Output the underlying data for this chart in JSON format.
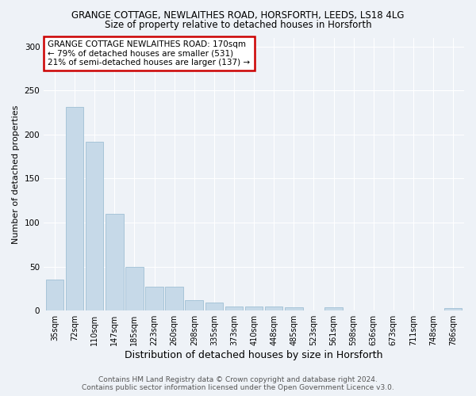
{
  "title": "GRANGE COTTAGE, NEWLAITHES ROAD, HORSFORTH, LEEDS, LS18 4LG",
  "subtitle": "Size of property relative to detached houses in Horsforth",
  "xlabel": "Distribution of detached houses by size in Horsforth",
  "ylabel": "Number of detached properties",
  "categories": [
    "35sqm",
    "72sqm",
    "110sqm",
    "147sqm",
    "185sqm",
    "223sqm",
    "260sqm",
    "298sqm",
    "335sqm",
    "373sqm",
    "410sqm",
    "448sqm",
    "485sqm",
    "523sqm",
    "561sqm",
    "598sqm",
    "636sqm",
    "673sqm",
    "711sqm",
    "748sqm",
    "786sqm"
  ],
  "values": [
    35,
    231,
    192,
    110,
    50,
    27,
    27,
    12,
    9,
    5,
    5,
    5,
    4,
    0,
    4,
    0,
    0,
    0,
    0,
    0,
    3
  ],
  "bar_color": "#c6d9e8",
  "bar_edge_color": "#9fbfd4",
  "ylim": [
    0,
    310
  ],
  "yticks": [
    0,
    50,
    100,
    150,
    200,
    250,
    300
  ],
  "annotation_line1": "GRANGE COTTAGE NEWLAITHES ROAD: 170sqm",
  "annotation_line2": "← 79% of detached houses are smaller (531)",
  "annotation_line3": "21% of semi-detached houses are larger (137) →",
  "annotation_box_color": "#ffffff",
  "annotation_box_edge": "#cc0000",
  "background_color": "#eef2f7",
  "grid_color": "#ffffff",
  "footer_line1": "Contains HM Land Registry data © Crown copyright and database right 2024.",
  "footer_line2": "Contains public sector information licensed under the Open Government Licence v3.0.",
  "title_fontsize": 8.5,
  "subtitle_fontsize": 8.5,
  "annotation_fontsize": 7.5,
  "ylabel_fontsize": 8,
  "xlabel_fontsize": 9,
  "footer_fontsize": 6.5,
  "tick_fontsize": 7
}
